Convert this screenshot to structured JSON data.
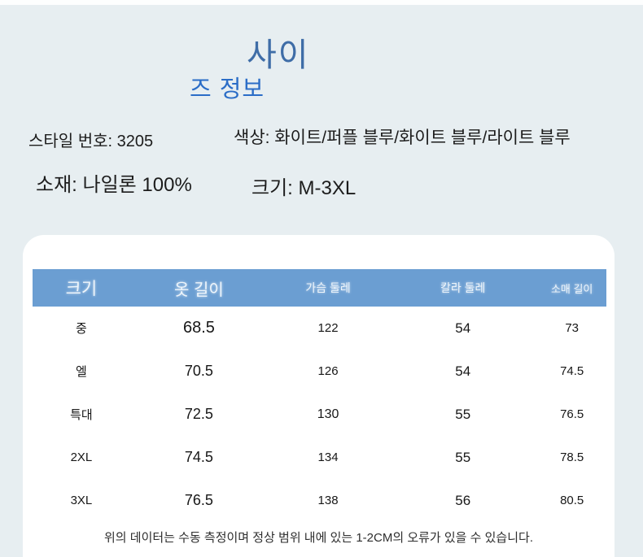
{
  "page": {
    "title_line1": "사이",
    "title_line2": "즈 정보",
    "info": {
      "style_label": "스타일 번호: 3205",
      "color_label": "색상: 화이트/퍼플 블루/화이트 블루/라이트 블루",
      "material_label": "소재: 나일론 100%",
      "size_label": "크기: M-3XL"
    }
  },
  "size_table": {
    "columns": [
      "크기",
      "옷 길이",
      "가슴 둘레",
      "칼라 둘레",
      "소매 길이"
    ],
    "rows": [
      [
        "중",
        "68.5",
        "122",
        "54",
        "73"
      ],
      [
        "엘",
        "70.5",
        "126",
        "54",
        "74.5"
      ],
      [
        "특대",
        "72.5",
        "130",
        "55",
        "76.5"
      ],
      [
        "2XL",
        "74.5",
        "134",
        "55",
        "78.5"
      ],
      [
        "3XL",
        "76.5",
        "138",
        "56",
        "80.5"
      ]
    ],
    "note": "위의 데이터는 수동 측정이며 정상 범위 내에 있는 1-2CM의 오류가 있을 수 있습니다."
  },
  "colors": {
    "page_bg": "#e7eef1",
    "card_bg": "#ffffff",
    "header_bg": "#6b9ed2",
    "header_text": "#eef5fb",
    "title_muted_blue": "#3f6da7",
    "title_bright_blue": "#2b6dc7",
    "body_text": "#1c1c1c"
  }
}
